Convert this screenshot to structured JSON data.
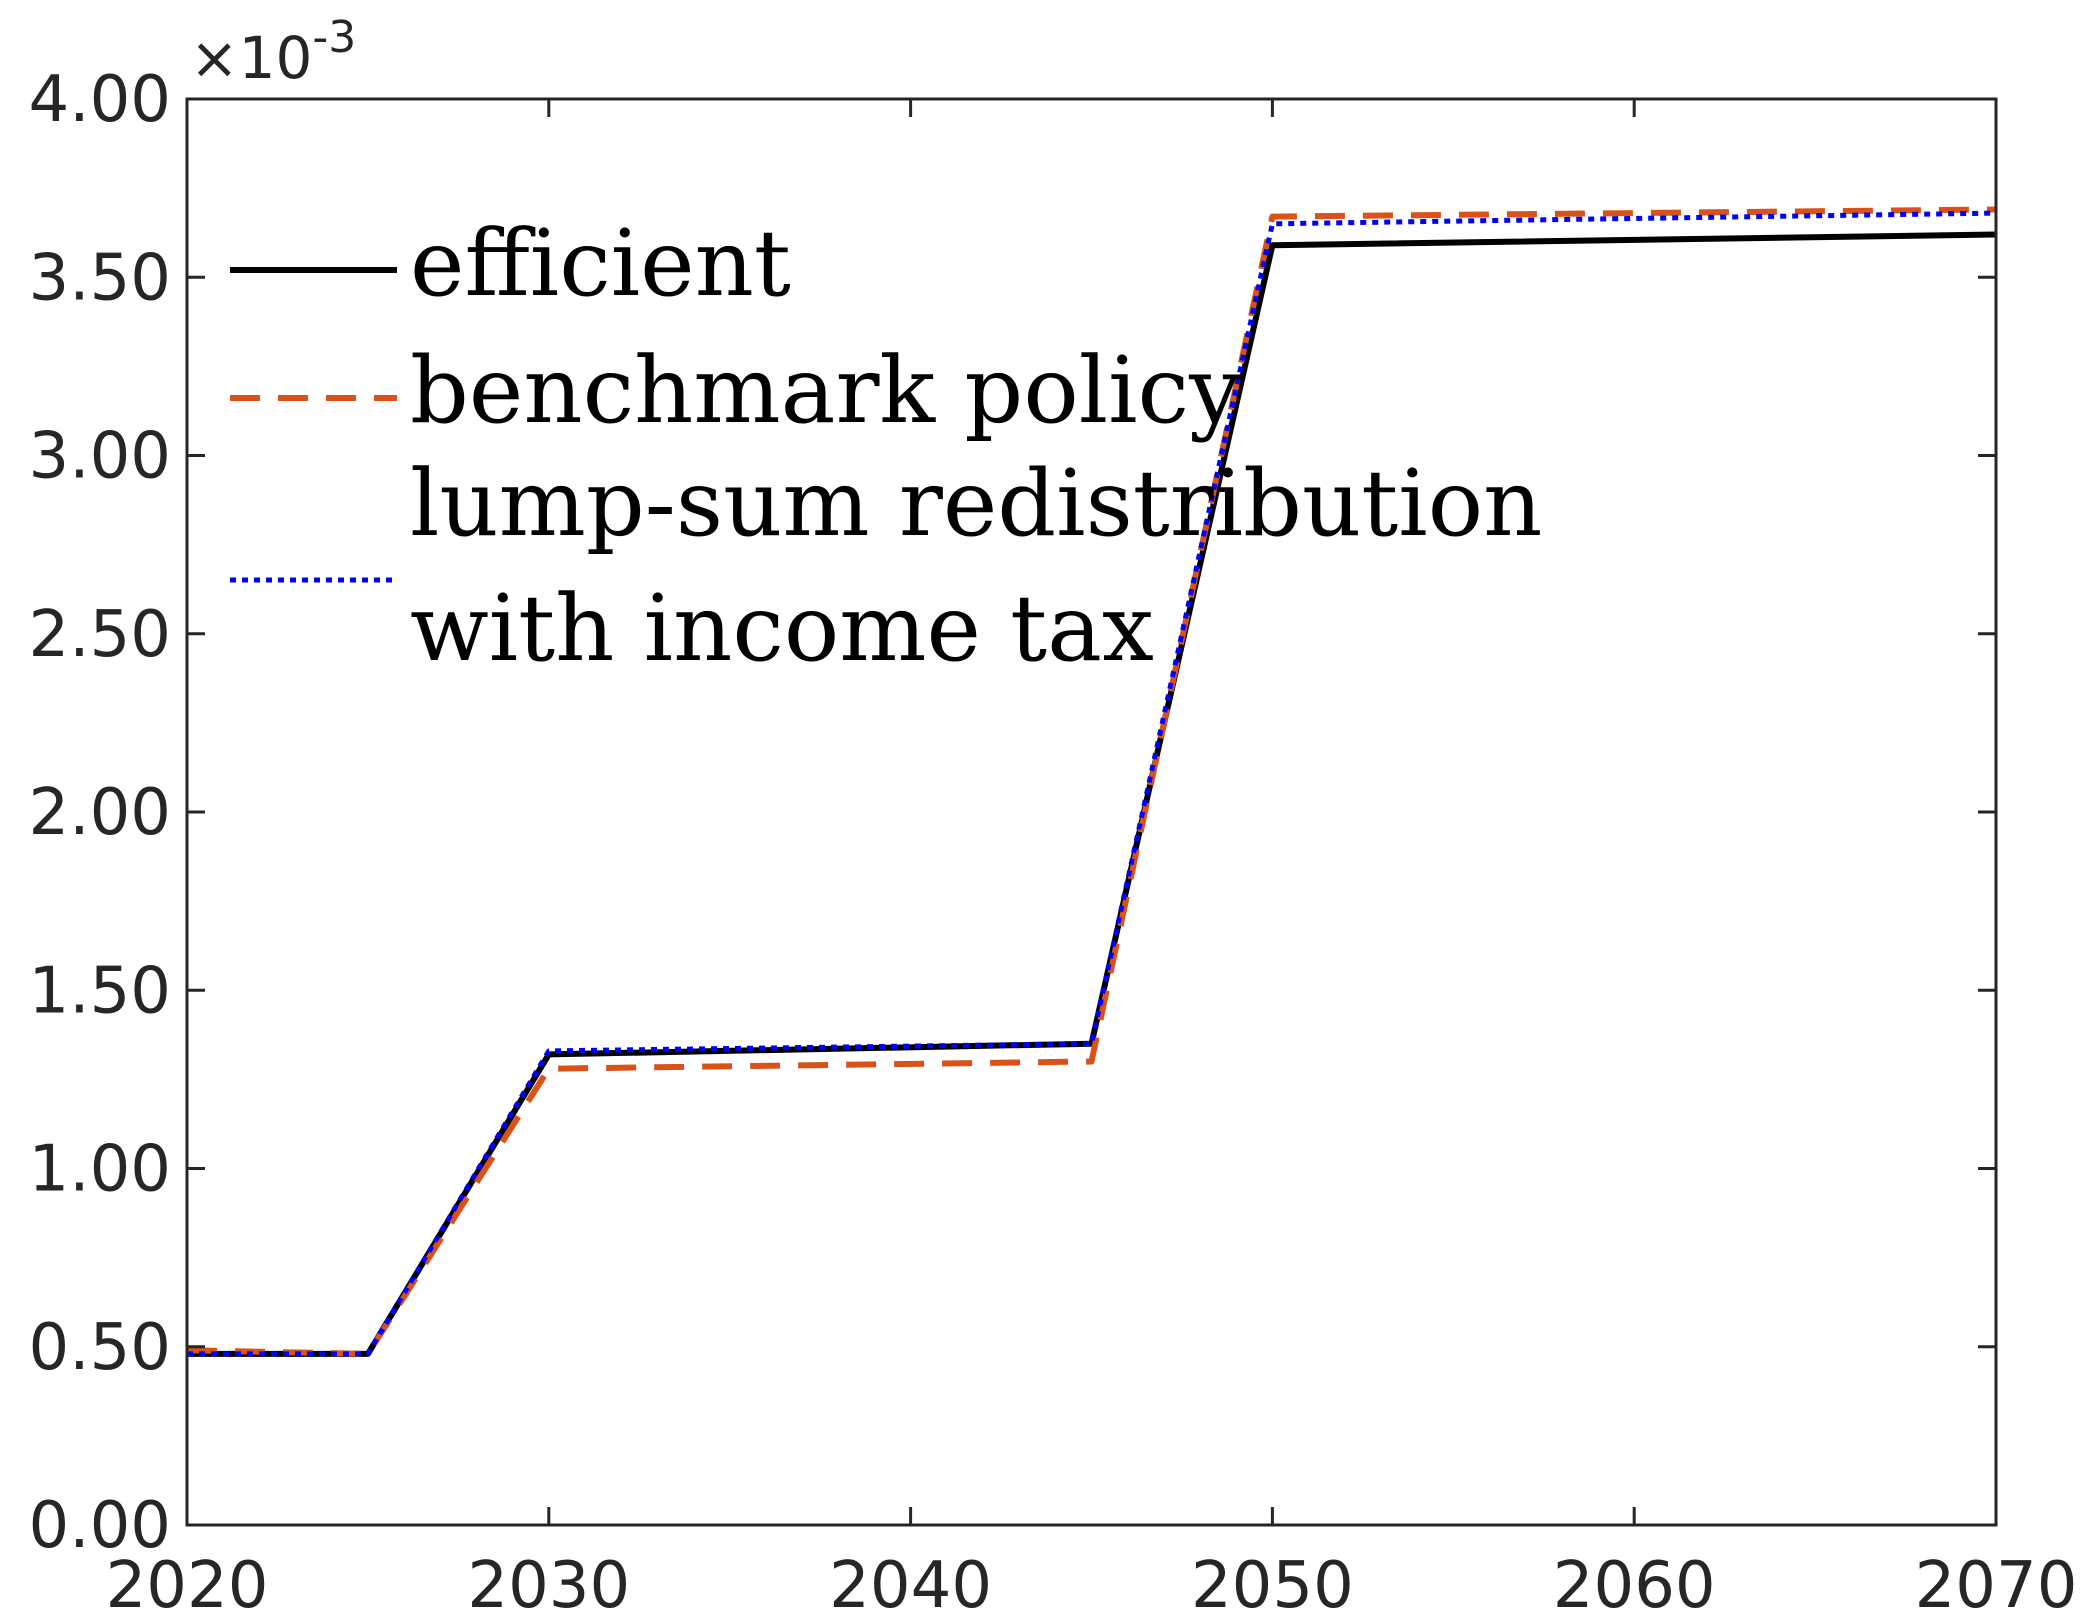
{
  "chart_data": {
    "type": "line",
    "title": "",
    "xlabel": "",
    "ylabel": "",
    "y_scale_multiplier": "×10-3",
    "xlim": [
      2020,
      2070
    ],
    "ylim": [
      0,
      4
    ],
    "x_ticks": [
      2020,
      2030,
      2040,
      2050,
      2060,
      2070
    ],
    "x_tick_labels": [
      "2020",
      "2030",
      "2040",
      "2050",
      "2060",
      "2070"
    ],
    "y_ticks": [
      0,
      0.5,
      1,
      1.5,
      2,
      2.5,
      3,
      3.5,
      4
    ],
    "y_tick_labels": [
      "0.00",
      "0.50",
      "1.00",
      "1.50",
      "2.00",
      "2.50",
      "3.00",
      "3.50",
      "4.00"
    ],
    "grid": false,
    "legend_position": "top-left",
    "series": [
      {
        "name": "efficient",
        "color": "#000000",
        "style": "solid",
        "x": [
          2020,
          2025,
          2030,
          2045,
          2050,
          2070
        ],
        "y": [
          0.48,
          0.48,
          1.32,
          1.35,
          3.59,
          3.62
        ]
      },
      {
        "name": "benchmark policy",
        "color": "#D95319",
        "style": "dashed",
        "x": [
          2020,
          2025,
          2030,
          2045,
          2050,
          2070
        ],
        "y": [
          0.49,
          0.48,
          1.28,
          1.3,
          3.67,
          3.69
        ]
      },
      {
        "name": "lump-sum redistribution with income tax",
        "name_lines": [
          "lump-sum redistribution",
          "with income tax"
        ],
        "color": "#0000FF",
        "style": "dotted",
        "x": [
          2020,
          2025,
          2030,
          2045,
          2050,
          2070
        ],
        "y": [
          0.48,
          0.48,
          1.33,
          1.35,
          3.65,
          3.68
        ]
      }
    ]
  }
}
